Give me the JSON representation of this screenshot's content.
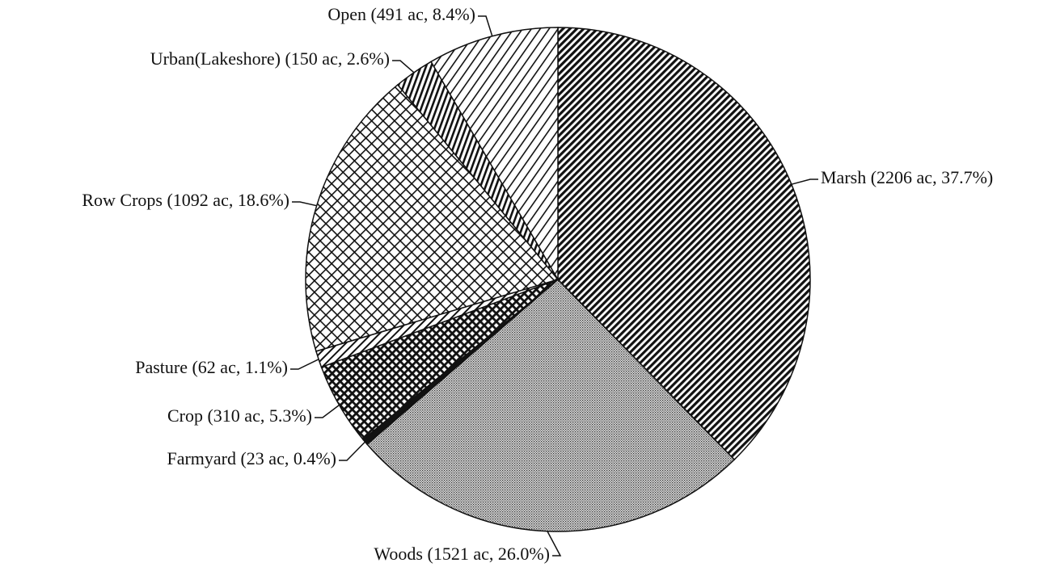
{
  "chart_data": {
    "type": "pie",
    "values": [
      2206,
      1521,
      23,
      310,
      62,
      1092,
      150,
      491
    ],
    "value_labels": [
      "Marsh (2206 ac, 37.7%)",
      "Woods (1521 ac, 26.0%)",
      "Farmyard (23 ac, 0.4%)",
      "Crop (310 ac, 5.3%)",
      "Pasture (62 ac, 1.1%)",
      "Row Crops (1092 ac, 18.6%)",
      "Urban(Lakeshore) (150 ac, 2.6%)",
      "Open (491 ac, 8.4%)"
    ]
  }
}
